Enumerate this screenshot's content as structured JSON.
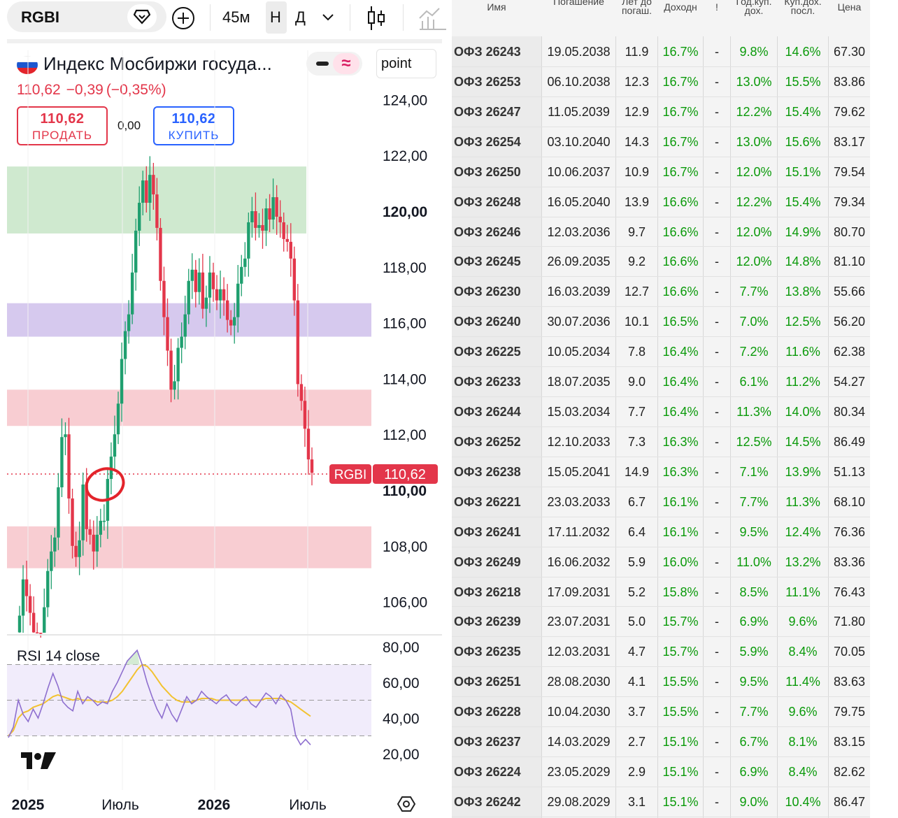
{
  "toolbar": {
    "symbol": "RGBI",
    "interval": "45м",
    "chart_type_h": "Н",
    "chart_type_d": "Д"
  },
  "header": {
    "title": "Индекс Мосбиржи госуда...",
    "price": "110,62",
    "change": "−0,39",
    "change_pct": "(−0,35%)",
    "unit": "point",
    "sell_price": "110,62",
    "sell_label": "ПРОДАТЬ",
    "spread": "0,00",
    "buy_price": "110,62",
    "buy_label": "КУПИТЬ"
  },
  "chart_data": [
    {
      "type": "candlestick",
      "symbol": "RGBI",
      "ylim": [
        104.0,
        125.0
      ],
      "y_ticks": [
        "124,00",
        "122,00",
        "120,00",
        "118,00",
        "116,00",
        "114,00",
        "112,00",
        "110,00",
        "108,00",
        "106,00"
      ],
      "x_ticks": [
        "2025",
        "Июль",
        "2026",
        "Июль"
      ],
      "last_price_label": "RGBI",
      "last_price": "110,62",
      "last_value": 110.62,
      "zones": [
        {
          "from": 119.2,
          "to": 121.6,
          "color": "#cfe9cf"
        },
        {
          "from": 115.5,
          "to": 116.7,
          "color": "#d6c9ee"
        },
        {
          "from": 112.3,
          "to": 113.6,
          "color": "#f8cdd2"
        },
        {
          "from": 107.2,
          "to": 108.7,
          "color": "#f8cdd2"
        }
      ],
      "closes": [
        105.5,
        106.8,
        106.2,
        105.6,
        104.9,
        104.2,
        104.0,
        105.8,
        107.1,
        107.8,
        108.3,
        110.1,
        111.9,
        112.0,
        109.7,
        108.0,
        107.6,
        108.2,
        110.2,
        108.6,
        108.4,
        107.8,
        108.4,
        108.9,
        108.9,
        110.4,
        111.2,
        112.0,
        113.1,
        114.7,
        115.7,
        116.3,
        117.8,
        119.3,
        120.3,
        121.1,
        120.3,
        121.3,
        120.6,
        119.4,
        117.5,
        116.2,
        115.0,
        113.6,
        113.9,
        115.1,
        115.5,
        116.3,
        117.5,
        117.9,
        117.1,
        117.8,
        116.5,
        116.9,
        117.8,
        117.2,
        116.8,
        117.2,
        116.8,
        116.1,
        115.9,
        116.2,
        117.4,
        118.0,
        118.3,
        119.6,
        120.0,
        119.4,
        119.5,
        119.3,
        120.1,
        119.7,
        120.5,
        119.8,
        119.6,
        119.0,
        118.9,
        118.3,
        116.8,
        113.8,
        113.2,
        112.2,
        111.1,
        110.62
      ]
    },
    {
      "type": "line",
      "title": "RSI 14 close",
      "ylim": [
        10,
        85
      ],
      "y_ticks": [
        "80,00",
        "60,00",
        "40,00",
        "20,00"
      ],
      "bands": [
        30,
        50,
        70
      ],
      "series": [
        {
          "values": [
            29,
            35,
            50,
            42,
            38,
            45,
            40,
            48,
            57,
            65,
            58,
            49,
            46,
            44,
            55,
            48,
            52,
            50,
            47,
            49,
            48,
            55,
            60,
            66,
            72,
            75,
            78,
            70,
            60,
            52,
            45,
            40,
            48,
            42,
            38,
            45,
            52,
            48,
            50,
            55,
            52,
            50,
            48,
            51,
            53,
            49,
            47,
            50,
            52,
            48,
            46,
            50,
            54,
            52,
            48,
            53,
            50,
            45,
            30,
            25,
            28,
            25
          ]
        },
        {
          "values": [
            30,
            33,
            40,
            43,
            44,
            46,
            47,
            48,
            50,
            52,
            53,
            52,
            51,
            50,
            51,
            50,
            50,
            50,
            49,
            49,
            49,
            50,
            52,
            55,
            59,
            63,
            67,
            70,
            69,
            66,
            62,
            58,
            55,
            52,
            50,
            49,
            49,
            49,
            50,
            51,
            51,
            51,
            50,
            50,
            50,
            50,
            50,
            50,
            50,
            50,
            50,
            50,
            51,
            51,
            51,
            51,
            50,
            49,
            47,
            45,
            43,
            41
          ]
        }
      ]
    }
  ],
  "table": {
    "headers": [
      "Имя",
      "Погашение",
      "Лет до погаш.",
      "Доходн",
      "!",
      "Год.куп. дох.",
      "Куп.дох. посл.",
      "Цена"
    ],
    "rows": [
      [
        "ОФЗ 26243",
        "19.05.2038",
        "11.9",
        "16.7%",
        "-",
        "9.8%",
        "14.6%",
        "67.30"
      ],
      [
        "ОФЗ 26253",
        "06.10.2038",
        "12.3",
        "16.7%",
        "-",
        "13.0%",
        "15.5%",
        "83.86"
      ],
      [
        "ОФЗ 26247",
        "11.05.2039",
        "12.9",
        "16.7%",
        "-",
        "12.2%",
        "15.4%",
        "79.62"
      ],
      [
        "ОФЗ 26254",
        "03.10.2040",
        "14.3",
        "16.7%",
        "-",
        "13.0%",
        "15.6%",
        "83.17"
      ],
      [
        "ОФЗ 26250",
        "10.06.2037",
        "10.9",
        "16.7%",
        "-",
        "12.0%",
        "15.1%",
        "79.54"
      ],
      [
        "ОФЗ 26248",
        "16.05.2040",
        "13.9",
        "16.6%",
        "-",
        "12.2%",
        "15.4%",
        "79.34"
      ],
      [
        "ОФЗ 26246",
        "12.03.2036",
        "9.7",
        "16.6%",
        "-",
        "12.0%",
        "14.9%",
        "80.70"
      ],
      [
        "ОФЗ 26245",
        "26.09.2035",
        "9.2",
        "16.6%",
        "-",
        "12.0%",
        "14.8%",
        "81.10"
      ],
      [
        "ОФЗ 26230",
        "16.03.2039",
        "12.7",
        "16.6%",
        "-",
        "7.7%",
        "13.8%",
        "55.66"
      ],
      [
        "ОФЗ 26240",
        "30.07.2036",
        "10.1",
        "16.5%",
        "-",
        "7.0%",
        "12.5%",
        "56.20"
      ],
      [
        "ОФЗ 26225",
        "10.05.2034",
        "7.8",
        "16.4%",
        "-",
        "7.2%",
        "11.6%",
        "62.38"
      ],
      [
        "ОФЗ 26233",
        "18.07.2035",
        "9.0",
        "16.4%",
        "-",
        "6.1%",
        "11.2%",
        "54.27"
      ],
      [
        "ОФЗ 26244",
        "15.03.2034",
        "7.7",
        "16.4%",
        "-",
        "11.3%",
        "14.0%",
        "80.34"
      ],
      [
        "ОФЗ 26252",
        "12.10.2033",
        "7.3",
        "16.3%",
        "-",
        "12.5%",
        "14.5%",
        "86.49"
      ],
      [
        "ОФЗ 26238",
        "15.05.2041",
        "14.9",
        "16.3%",
        "-",
        "7.1%",
        "13.9%",
        "51.13"
      ],
      [
        "ОФЗ 26221",
        "23.03.2033",
        "6.7",
        "16.1%",
        "-",
        "7.7%",
        "11.3%",
        "68.10"
      ],
      [
        "ОФЗ 26241",
        "17.11.2032",
        "6.4",
        "16.1%",
        "-",
        "9.5%",
        "12.4%",
        "76.36"
      ],
      [
        "ОФЗ 26249",
        "16.06.2032",
        "5.9",
        "16.0%",
        "-",
        "11.0%",
        "13.2%",
        "83.36"
      ],
      [
        "ОФЗ 26218",
        "17.09.2031",
        "5.2",
        "15.8%",
        "-",
        "8.5%",
        "11.1%",
        "76.43"
      ],
      [
        "ОФЗ 26239",
        "23.07.2031",
        "5.0",
        "15.7%",
        "-",
        "6.9%",
        "9.6%",
        "71.80"
      ],
      [
        "ОФЗ 26235",
        "12.03.2031",
        "4.7",
        "15.7%",
        "-",
        "5.9%",
        "8.4%",
        "70.05"
      ],
      [
        "ОФЗ 26251",
        "28.08.2030",
        "4.1",
        "15.5%",
        "-",
        "9.5%",
        "11.4%",
        "83.63"
      ],
      [
        "ОФЗ 26228",
        "10.04.2030",
        "3.7",
        "15.5%",
        "-",
        "7.7%",
        "9.6%",
        "79.75"
      ],
      [
        "ОФЗ 26237",
        "14.03.2029",
        "2.7",
        "15.1%",
        "-",
        "6.7%",
        "8.1%",
        "83.15"
      ],
      [
        "ОФЗ 26224",
        "23.05.2029",
        "2.9",
        "15.1%",
        "-",
        "6.9%",
        "8.4%",
        "82.62"
      ],
      [
        "ОФЗ 26242",
        "29.08.2029",
        "3.1",
        "15.1%",
        "-",
        "9.0%",
        "10.4%",
        "86.47"
      ]
    ]
  },
  "icons": [
    "diamond-icon",
    "plus-circle-icon",
    "chevron-down-icon",
    "candles-icon",
    "chart-plus-icon",
    "settings-icon",
    "tradingview-logo"
  ],
  "colors": {
    "up": "#1f9f6f",
    "down": "#e3364a",
    "rsi": "#8e6fcf",
    "rsi_ma": "#f2c230",
    "yield": "#0a9a0a"
  }
}
